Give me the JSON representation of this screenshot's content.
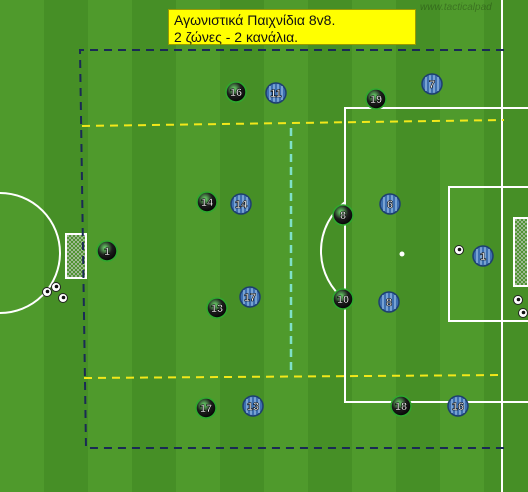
{
  "title": {
    "line1": "Αγωνιστικά Παιχνίδια 8v8.",
    "line2": "2 ζώνες - 2 κανάλια."
  },
  "watermark": "www.tacticalpad",
  "colors": {
    "grass_light": "#4f9a2c",
    "grass_dark": "#468f26",
    "line": "#ffffff",
    "zone_line": "#f2e81a",
    "channel_line": "#7fe0c8",
    "boundary": "#1a2a55",
    "team_green": "#2f8a2f",
    "team_blue": "#3d6fb0"
  },
  "players": [
    {
      "team": "green",
      "number": "16"
    },
    {
      "team": "blue",
      "number": "11"
    },
    {
      "team": "green",
      "number": "19"
    },
    {
      "team": "blue",
      "number": "7"
    },
    {
      "team": "green",
      "number": "14"
    },
    {
      "team": "blue",
      "number": "14"
    },
    {
      "team": "green",
      "number": "8"
    },
    {
      "team": "blue",
      "number": "6"
    },
    {
      "team": "green",
      "number": "1"
    },
    {
      "team": "blue",
      "number": "1"
    },
    {
      "team": "green",
      "number": "13"
    },
    {
      "team": "blue",
      "number": "17"
    },
    {
      "team": "green",
      "number": "10"
    },
    {
      "team": "blue",
      "number": "8"
    },
    {
      "team": "green",
      "number": "17"
    },
    {
      "team": "blue",
      "number": "13"
    },
    {
      "team": "green",
      "number": "18"
    },
    {
      "team": "blue",
      "number": "16"
    }
  ],
  "balls": [
    {
      "name": "ball-left-1"
    },
    {
      "name": "ball-left-2"
    },
    {
      "name": "ball-left-3"
    },
    {
      "name": "ball-right-goal"
    },
    {
      "name": "ball-right-1"
    },
    {
      "name": "ball-right-2"
    }
  ]
}
